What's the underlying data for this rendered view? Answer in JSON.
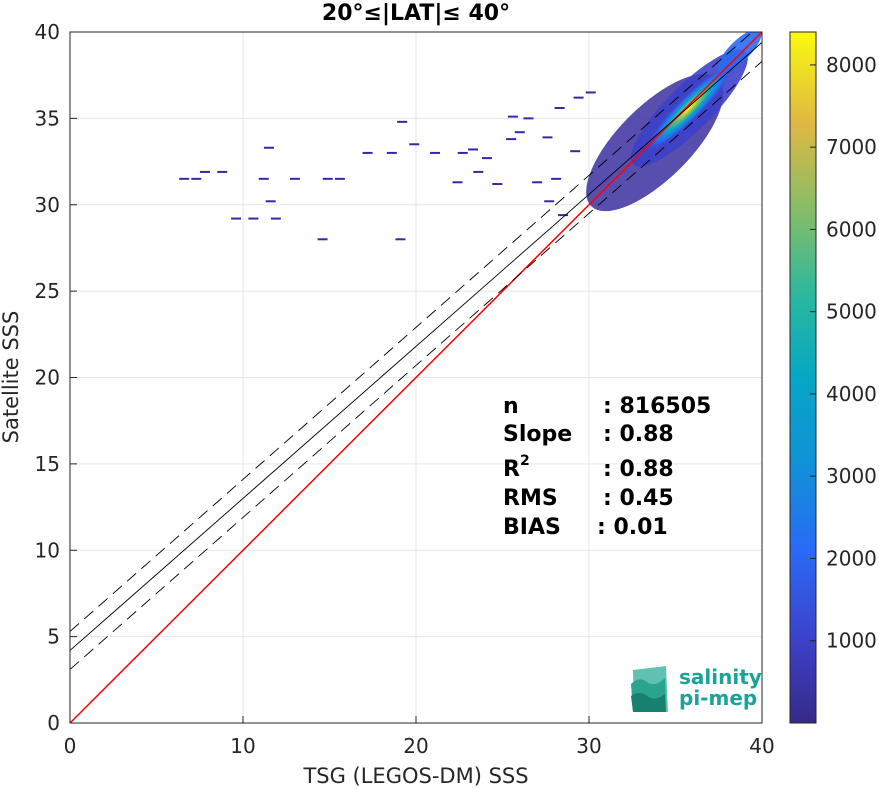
{
  "chart_data": {
    "type": "heatmap",
    "title": "20°≤|LAT|≤ 40°",
    "xlabel": "TSG (LEGOS-DM) SSS",
    "ylabel": "Satellite SSS",
    "xlim": [
      0,
      40
    ],
    "ylim": [
      0,
      40
    ],
    "xticks": [
      0,
      10,
      20,
      30,
      40
    ],
    "yticks": [
      0,
      5,
      10,
      15,
      20,
      25,
      30,
      35,
      40
    ],
    "grid": true,
    "colorbar": {
      "min": 0,
      "max": 8400,
      "ticks": [
        1000,
        2000,
        3000,
        4000,
        5000,
        6000,
        7000,
        8000
      ],
      "colormap": "parula"
    },
    "lines": [
      {
        "name": "identity",
        "intercept": 0,
        "slope": 1,
        "color": "#ff0000"
      },
      {
        "name": "regression",
        "intercept": 4.2,
        "slope": 0.88,
        "color": "#000000",
        "style": "solid"
      },
      {
        "name": "regression-upper",
        "intercept": 5.3,
        "slope": 0.88,
        "color": "#000000",
        "style": "dashed"
      },
      {
        "name": "regression-lower",
        "intercept": 3.1,
        "slope": 0.88,
        "color": "#000000",
        "style": "dashed"
      }
    ],
    "stats": [
      {
        "label": "n",
        "value": ": 816505"
      },
      {
        "label": "Slope",
        "value": ": 0.88"
      },
      {
        "label": "R",
        "sup": "2",
        "value": ": 0.88"
      },
      {
        "label": "RMS",
        "value": ": 0.45"
      },
      {
        "label": "BIAS",
        "value": ": 0.01"
      }
    ],
    "density_core": {
      "x": 35.8,
      "y": 35.6,
      "peak": 8400
    },
    "outlier_points": [
      [
        7.8,
        31.9
      ],
      [
        8.8,
        31.9
      ],
      [
        6.6,
        31.5
      ],
      [
        7.3,
        31.5
      ],
      [
        11.2,
        31.5
      ],
      [
        13.0,
        31.5
      ],
      [
        14.9,
        31.5
      ],
      [
        15.6,
        31.5
      ],
      [
        11.6,
        30.2
      ],
      [
        9.6,
        29.2
      ],
      [
        10.6,
        29.2
      ],
      [
        11.9,
        29.2
      ],
      [
        14.6,
        28.0
      ],
      [
        19.1,
        28.0
      ],
      [
        11.5,
        33.3
      ],
      [
        19.2,
        34.8
      ],
      [
        19.9,
        33.5
      ],
      [
        21.1,
        33.0
      ],
      [
        22.7,
        33.0
      ],
      [
        17.2,
        33.0
      ],
      [
        18.6,
        33.0
      ],
      [
        24.1,
        32.7
      ],
      [
        23.3,
        33.2
      ],
      [
        25.5,
        33.8
      ],
      [
        26.0,
        34.2
      ],
      [
        25.6,
        35.1
      ],
      [
        26.5,
        35.0
      ],
      [
        27.6,
        33.9
      ],
      [
        28.1,
        31.5
      ],
      [
        27.0,
        31.3
      ],
      [
        23.6,
        31.9
      ],
      [
        24.7,
        31.2
      ],
      [
        27.7,
        30.2
      ],
      [
        28.5,
        29.4
      ],
      [
        28.3,
        35.6
      ],
      [
        29.4,
        36.2
      ],
      [
        30.1,
        36.5
      ],
      [
        29.2,
        33.1
      ],
      [
        22.4,
        31.3
      ]
    ]
  },
  "logo": {
    "line1": "salinity",
    "line2": "pi-mep"
  }
}
